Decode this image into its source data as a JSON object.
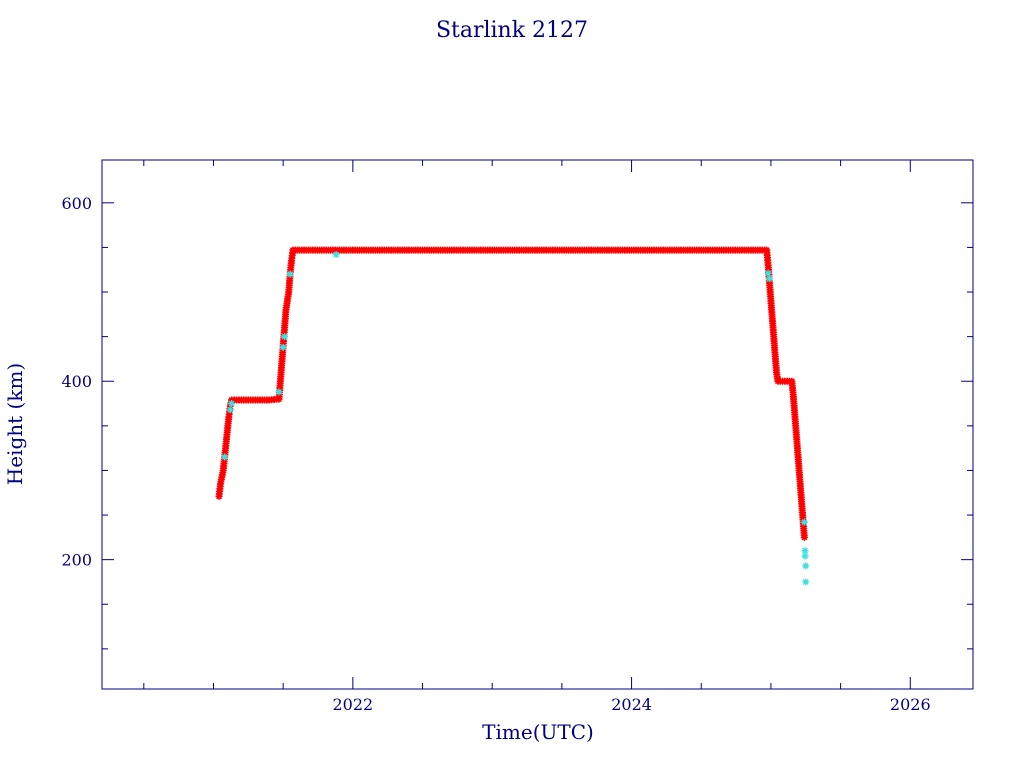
{
  "chart_data": {
    "type": "scatter",
    "title": "Starlink 2127",
    "xlabel": "Time(UTC)",
    "ylabel": "Height (km)",
    "xlim": [
      2020.2,
      2026.45
    ],
    "ylim": [
      55,
      648
    ],
    "xticks": [
      2022,
      2024,
      2026
    ],
    "yticks": [
      200,
      400,
      600
    ],
    "xtick_labels": [
      "2022",
      "2024",
      "2026"
    ],
    "ytick_labels": [
      "200",
      "400",
      "600"
    ],
    "x_minor_step": 0.5,
    "y_minor_step": 50,
    "grid": false,
    "colors": {
      "axis": "#000080",
      "text": "#000080",
      "primary": "#ff0000",
      "secondary": "#40e0e0",
      "line": "#000000"
    },
    "series": [
      {
        "marker": "star",
        "color": "#ff0000",
        "points": [
          [
            2021.04,
            271
          ],
          [
            2021.05,
            285
          ],
          [
            2021.07,
            300
          ],
          [
            2021.08,
            315
          ],
          [
            2021.09,
            330
          ],
          [
            2021.1,
            345
          ],
          [
            2021.11,
            360
          ],
          [
            2021.12,
            372
          ],
          [
            2021.13,
            379
          ],
          [
            2021.2,
            379
          ],
          [
            2021.3,
            379
          ],
          [
            2021.4,
            379
          ],
          [
            2021.47,
            380
          ],
          [
            2021.48,
            400
          ],
          [
            2021.49,
            420
          ],
          [
            2021.5,
            440
          ],
          [
            2021.51,
            460
          ],
          [
            2021.52,
            480
          ],
          [
            2021.54,
            500
          ],
          [
            2021.55,
            520
          ],
          [
            2021.56,
            535
          ],
          [
            2021.57,
            547
          ],
          [
            2022.0,
            547
          ],
          [
            2022.5,
            547
          ],
          [
            2023.0,
            547
          ],
          [
            2023.5,
            547
          ],
          [
            2024.0,
            547
          ],
          [
            2024.5,
            547
          ],
          [
            2024.97,
            547
          ],
          [
            2024.98,
            530
          ],
          [
            2024.99,
            510
          ],
          [
            2025.0,
            490
          ],
          [
            2025.01,
            470
          ],
          [
            2025.02,
            450
          ],
          [
            2025.03,
            430
          ],
          [
            2025.04,
            410
          ],
          [
            2025.05,
            400
          ],
          [
            2025.1,
            400
          ],
          [
            2025.15,
            400
          ],
          [
            2025.16,
            385
          ],
          [
            2025.17,
            365
          ],
          [
            2025.18,
            345
          ],
          [
            2025.19,
            325
          ],
          [
            2025.2,
            305
          ],
          [
            2025.21,
            285
          ],
          [
            2025.22,
            265
          ],
          [
            2025.23,
            245
          ],
          [
            2025.24,
            225
          ]
        ]
      },
      {
        "marker": "star",
        "color": "#40e0e0",
        "points": [
          [
            2021.08,
            315
          ],
          [
            2021.12,
            368
          ],
          [
            2021.13,
            375
          ],
          [
            2021.47,
            388
          ],
          [
            2021.5,
            438
          ],
          [
            2021.51,
            450
          ],
          [
            2021.55,
            520
          ],
          [
            2021.88,
            542
          ],
          [
            2024.98,
            521
          ],
          [
            2024.99,
            515
          ],
          [
            2025.24,
            242
          ],
          [
            2025.245,
            210
          ],
          [
            2025.245,
            204
          ],
          [
            2025.25,
            193
          ],
          [
            2025.25,
            175
          ]
        ]
      }
    ]
  }
}
